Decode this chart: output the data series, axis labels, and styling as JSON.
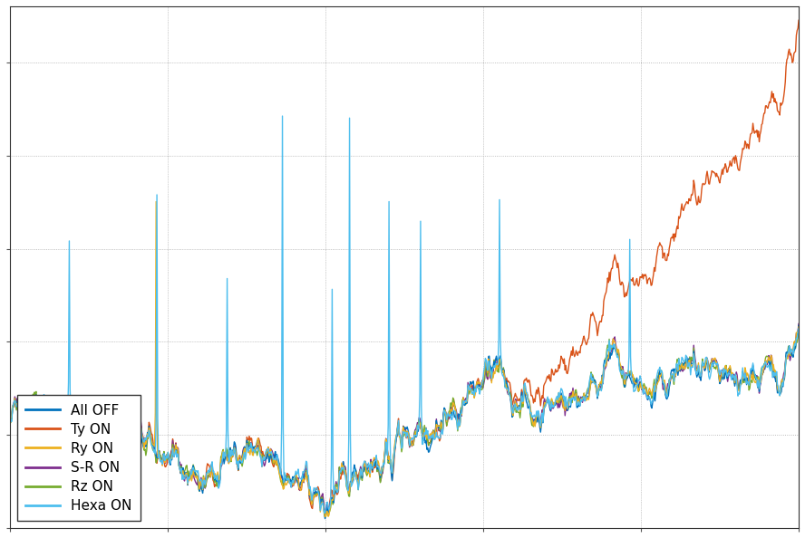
{
  "title": "",
  "xlabel": "",
  "ylabel": "",
  "legend_entries": [
    "All OFF",
    "Ty ON",
    "Ry ON",
    "S-R ON",
    "Rz ON",
    "Hexa ON"
  ],
  "colors": [
    "#0072BD",
    "#D95319",
    "#EDB120",
    "#7E2F8E",
    "#77AC30",
    "#4DBEEE"
  ],
  "linewidths": [
    1.0,
    1.0,
    1.0,
    1.0,
    1.0,
    1.0
  ],
  "background_color": "#ffffff",
  "n_points": 1000,
  "legend_loc": "lower left",
  "legend_fontsize": 11
}
